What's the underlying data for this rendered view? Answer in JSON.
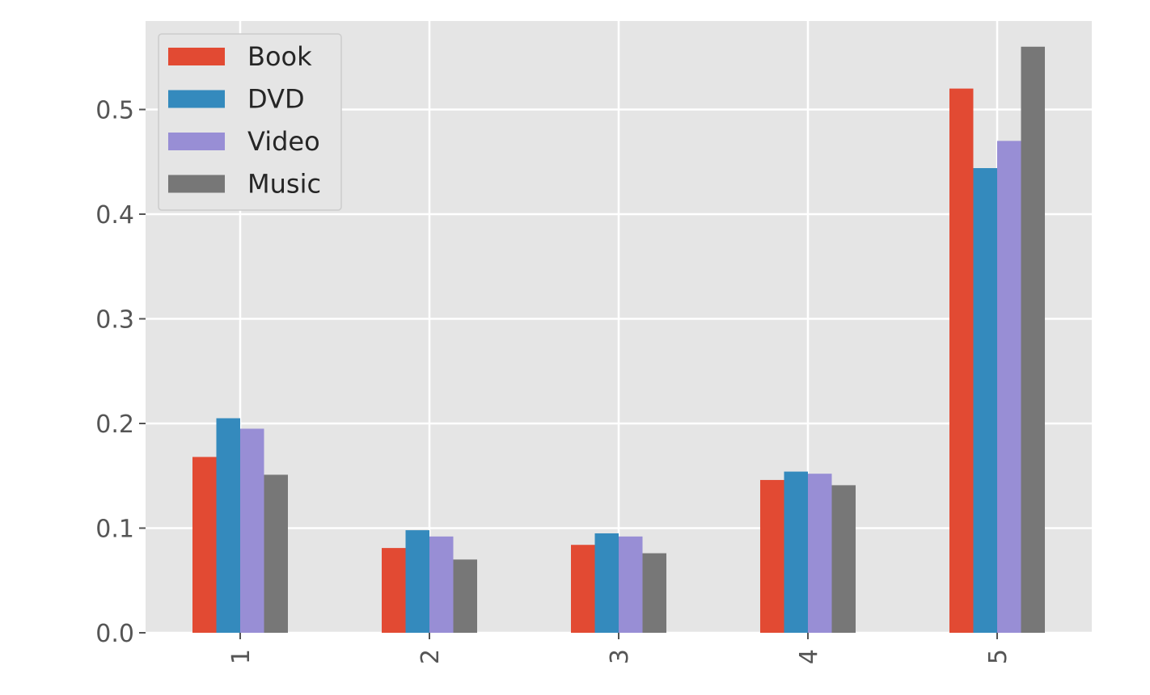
{
  "chart_data": {
    "type": "bar",
    "categories": [
      "1",
      "2",
      "3",
      "4",
      "5"
    ],
    "series": [
      {
        "name": "Book",
        "color": "#E24A33",
        "values": [
          0.168,
          0.081,
          0.084,
          0.146,
          0.52
        ]
      },
      {
        "name": "DVD",
        "color": "#348ABD",
        "values": [
          0.205,
          0.098,
          0.095,
          0.154,
          0.444
        ]
      },
      {
        "name": "Video",
        "color": "#988ED5",
        "values": [
          0.195,
          0.092,
          0.092,
          0.152,
          0.47
        ]
      },
      {
        "name": "Music",
        "color": "#777777",
        "values": [
          0.151,
          0.07,
          0.076,
          0.141,
          0.56
        ]
      }
    ],
    "yticks": [
      "0.0",
      "0.1",
      "0.2",
      "0.3",
      "0.4",
      "0.5"
    ],
    "ylim": [
      0,
      0.58
    ],
    "title": "",
    "xlabel": "",
    "ylabel": "",
    "grid": true,
    "legend_position": "top-left",
    "xtick_rotation": "vertical",
    "style": "ggplot"
  }
}
